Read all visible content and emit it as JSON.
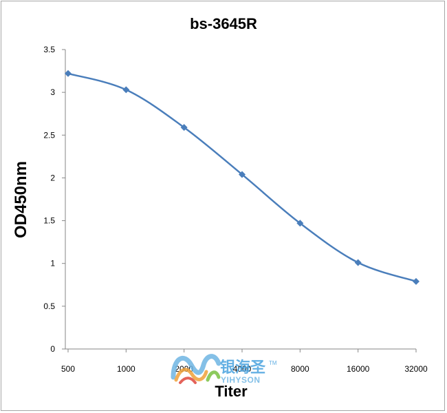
{
  "chart_data": {
    "type": "line",
    "title": "bs-3645R",
    "xlabel": "Titer",
    "ylabel": "OD450nm",
    "categories": [
      "500",
      "1000",
      "2000",
      "4000",
      "8000",
      "16000",
      "32000"
    ],
    "series": [
      {
        "values": [
          3.22,
          3.03,
          2.59,
          2.04,
          1.47,
          1.01,
          0.79
        ]
      }
    ],
    "ylim": [
      0,
      3.5
    ],
    "yticks": [
      "0",
      "0.5",
      "1",
      "1.5",
      "2",
      "2.5",
      "3",
      "3.5"
    ],
    "grid": false,
    "legend": "none",
    "colors": {
      "series": "#4a7ebb",
      "axis": "#868686"
    }
  },
  "watermark": {
    "brand_cn": "银海圣",
    "brand_en": "YIHYSON",
    "trademark": "TM"
  }
}
